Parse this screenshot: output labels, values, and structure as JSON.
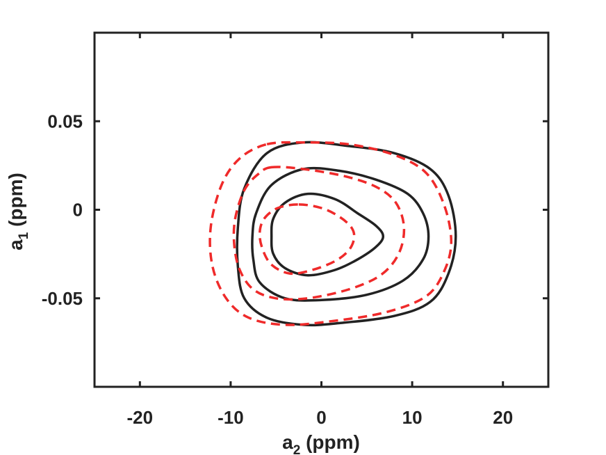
{
  "chart_data": {
    "type": "contour",
    "xlabel": {
      "base": "a",
      "sub": "2",
      "unit": " (ppm)"
    },
    "ylabel": {
      "base": "a",
      "sub": "1",
      "unit": " (ppm)"
    },
    "xlim": [
      -25,
      25
    ],
    "ylim": [
      -0.1,
      0.1
    ],
    "xticks": [
      -20,
      -10,
      0,
      10,
      20
    ],
    "xtick_labels": [
      "-20",
      "-10",
      "0",
      "10",
      "20"
    ],
    "yticks": [
      0.05,
      0,
      -0.05
    ],
    "ytick_labels": [
      "0.05",
      "0",
      "-0.05"
    ],
    "grid": false,
    "series": [
      {
        "style": "solid",
        "color": "#222222",
        "contours": [
          [
            [
              -1.5,
              0.009
            ],
            [
              1.5,
              0.006
            ],
            [
              4,
              -0.002
            ],
            [
              6,
              -0.009
            ],
            [
              6.8,
              -0.015
            ],
            [
              6,
              -0.021
            ],
            [
              4,
              -0.028
            ],
            [
              1.5,
              -0.034
            ],
            [
              -1.5,
              -0.037
            ],
            [
              -4,
              -0.033
            ],
            [
              -5.3,
              -0.025
            ],
            [
              -5.5,
              -0.015
            ],
            [
              -5.3,
              -0.005
            ],
            [
              -4,
              0.004
            ]
          ],
          [
            [
              -2,
              0.023
            ],
            [
              2,
              0.022
            ],
            [
              6,
              0.017
            ],
            [
              9.5,
              0.009
            ],
            [
              11.2,
              -0.002
            ],
            [
              11.8,
              -0.015
            ],
            [
              11.2,
              -0.028
            ],
            [
              9,
              -0.04
            ],
            [
              5,
              -0.048
            ],
            [
              0,
              -0.051
            ],
            [
              -4,
              -0.05
            ],
            [
              -6.8,
              -0.041
            ],
            [
              -7.5,
              -0.028
            ],
            [
              -7.6,
              -0.015
            ],
            [
              -7.2,
              -0.002
            ],
            [
              -5.5,
              0.014
            ]
          ],
          [
            [
              -2,
              0.038
            ],
            [
              3,
              0.036
            ],
            [
              8,
              0.032
            ],
            [
              12,
              0.023
            ],
            [
              14,
              0.008
            ],
            [
              14.8,
              -0.015
            ],
            [
              14,
              -0.036
            ],
            [
              12,
              -0.052
            ],
            [
              8,
              -0.06
            ],
            [
              2,
              -0.064
            ],
            [
              -2,
              -0.065
            ],
            [
              -6,
              -0.061
            ],
            [
              -8.5,
              -0.05
            ],
            [
              -9.2,
              -0.032
            ],
            [
              -9.2,
              -0.01
            ],
            [
              -8.5,
              0.012
            ],
            [
              -6,
              0.032
            ]
          ]
        ]
      },
      {
        "style": "dashed",
        "color": "#ef2a2a",
        "contours": [
          [
            [
              -2.5,
              0.003
            ],
            [
              0,
              0.001
            ],
            [
              2,
              -0.004
            ],
            [
              3.3,
              -0.01
            ],
            [
              3.6,
              -0.016
            ],
            [
              3,
              -0.023
            ],
            [
              1.5,
              -0.029
            ],
            [
              -1,
              -0.034
            ],
            [
              -3.5,
              -0.036
            ],
            [
              -5.5,
              -0.031
            ],
            [
              -6.5,
              -0.022
            ],
            [
              -6.8,
              -0.013
            ],
            [
              -6.3,
              -0.005
            ],
            [
              -4.8,
              0.001
            ]
          ],
          [
            [
              -5.5,
              0.024
            ],
            [
              -2,
              0.023
            ],
            [
              2.5,
              0.019
            ],
            [
              6,
              0.013
            ],
            [
              8.2,
              0.004
            ],
            [
              9.1,
              -0.01
            ],
            [
              8.5,
              -0.025
            ],
            [
              6.5,
              -0.037
            ],
            [
              3,
              -0.045
            ],
            [
              -1.5,
              -0.05
            ],
            [
              -5,
              -0.05
            ],
            [
              -7.5,
              -0.045
            ],
            [
              -9,
              -0.034
            ],
            [
              -9.6,
              -0.02
            ],
            [
              -9.5,
              -0.005
            ],
            [
              -8.5,
              0.011
            ],
            [
              -7,
              0.02
            ]
          ],
          [
            [
              -6,
              0.037
            ],
            [
              -2,
              0.038
            ],
            [
              3,
              0.037
            ],
            [
              8,
              0.031
            ],
            [
              11.5,
              0.021
            ],
            [
              13.5,
              0.003
            ],
            [
              14.3,
              -0.018
            ],
            [
              13.5,
              -0.035
            ],
            [
              11.5,
              -0.049
            ],
            [
              7,
              -0.058
            ],
            [
              1,
              -0.063
            ],
            [
              -4,
              -0.065
            ],
            [
              -8,
              -0.061
            ],
            [
              -10.5,
              -0.05
            ],
            [
              -12,
              -0.032
            ],
            [
              -12.2,
              -0.01
            ],
            [
              -11,
              0.014
            ],
            [
              -9,
              0.029
            ]
          ]
        ]
      }
    ]
  }
}
